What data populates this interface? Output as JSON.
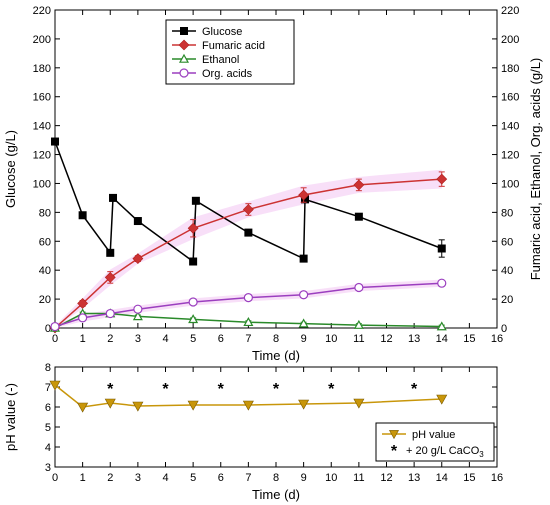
{
  "chart_data": [
    {
      "type": "line",
      "xlabel": "Time (d)",
      "ylabel_left": "Glucose (g/L)",
      "ylabel_right": "Fumaric acid, Ethanol, Org. acids (g/L)",
      "xlim": [
        0,
        16
      ],
      "ylim": [
        0,
        220
      ],
      "x_ticks": [
        0,
        1,
        2,
        3,
        4,
        5,
        6,
        7,
        8,
        9,
        10,
        11,
        12,
        13,
        14,
        15,
        16
      ],
      "y_ticks": [
        0,
        20,
        40,
        60,
        80,
        100,
        120,
        140,
        160,
        180,
        200,
        220
      ],
      "legend_position": "top-center",
      "series": [
        {
          "name": "Glucose",
          "axis": "left",
          "color": "#000000",
          "marker": "filled-square",
          "x": [
            0,
            1,
            2,
            2.1,
            3,
            5,
            5.1,
            7,
            9,
            9.05,
            11,
            14
          ],
          "y": [
            129,
            78,
            52,
            90,
            74,
            46,
            88,
            66,
            48,
            89,
            77,
            55
          ],
          "error": [
            0,
            0,
            0,
            0,
            0,
            0,
            0,
            0,
            0,
            0,
            0,
            6
          ]
        },
        {
          "name": "Fumaric acid",
          "axis": "right",
          "color": "#cc3333",
          "marker": "filled-diamond",
          "x": [
            0,
            1,
            2,
            3,
            5,
            7,
            9,
            11,
            14
          ],
          "y": [
            0,
            17,
            35,
            48,
            69,
            82,
            92,
            99,
            103
          ],
          "error": [
            0,
            2,
            4,
            2,
            6,
            4,
            5,
            4,
            5
          ]
        },
        {
          "name": "Ethanol",
          "axis": "right",
          "color": "#2a8a2a",
          "marker": "open-triangle",
          "x": [
            0,
            1,
            2,
            3,
            5,
            7,
            9,
            11,
            14
          ],
          "y": [
            0,
            10,
            10,
            8,
            6,
            4,
            3,
            2,
            1
          ],
          "error": [
            0,
            1,
            1,
            1,
            1,
            1,
            1,
            1,
            1
          ]
        },
        {
          "name": "Org. acids",
          "axis": "right",
          "color": "#9b3fbf",
          "marker": "open-circle",
          "x": [
            0,
            1,
            2,
            3,
            5,
            7,
            9,
            11,
            14
          ],
          "y": [
            1,
            7,
            10,
            13,
            18,
            21,
            23,
            28,
            31
          ],
          "error": [
            0,
            1,
            1,
            1,
            1,
            1,
            1,
            1,
            1
          ]
        }
      ]
    },
    {
      "type": "line",
      "xlabel": "Time (d)",
      "ylabel": "pH value (-)",
      "xlim": [
        0,
        16
      ],
      "ylim": [
        3,
        8
      ],
      "x_ticks": [
        0,
        1,
        2,
        3,
        4,
        5,
        6,
        7,
        8,
        9,
        10,
        11,
        12,
        13,
        14,
        15,
        16
      ],
      "y_ticks": [
        3,
        4,
        5,
        6,
        7,
        8
      ],
      "legend_position": "bottom-right",
      "series": [
        {
          "name": "pH value",
          "color": "#c8960a",
          "marker": "filled-inverted-triangle",
          "x": [
            0,
            1,
            2,
            3,
            5,
            7,
            9,
            11,
            14
          ],
          "y": [
            7.1,
            6.0,
            6.2,
            6.05,
            6.1,
            6.1,
            6.15,
            6.2,
            6.4
          ]
        }
      ],
      "annotations": {
        "marker": "*",
        "x": [
          2,
          4,
          6,
          8,
          10,
          13
        ],
        "label": "+ 20 g/L CaCO",
        "label_subscript": "3"
      }
    }
  ]
}
